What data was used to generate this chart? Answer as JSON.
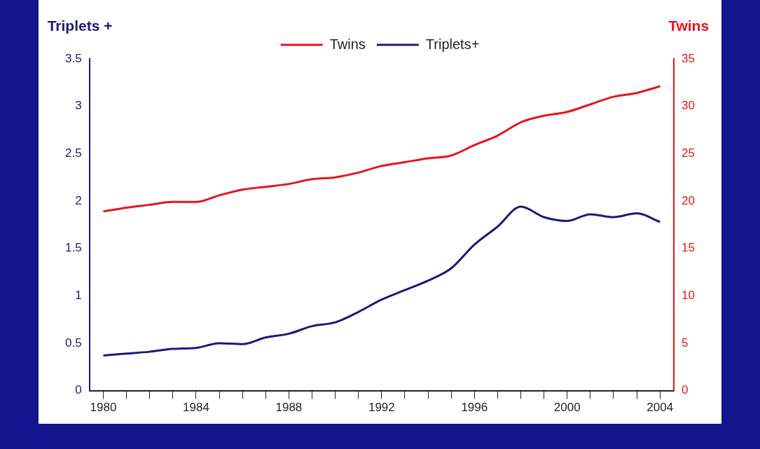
{
  "chart_data": {
    "type": "line",
    "ylabel": "Triplets +",
    "y2label": "Twins",
    "legend": "top",
    "marker": "none",
    "line_style": "solid",
    "grid": false,
    "xlim": [
      1979.4,
      2004.6
    ],
    "xticks": [
      1980,
      {
        "value": 1981,
        "label": null
      },
      {
        "value": 1982,
        "label": null
      },
      {
        "value": 1983,
        "label": null
      },
      1984,
      {
        "value": 1985,
        "label": null
      },
      {
        "value": 1986,
        "label": null
      },
      {
        "value": 1987,
        "label": null
      },
      1988,
      {
        "value": 1989,
        "label": null
      },
      {
        "value": 1990,
        "label": null
      },
      {
        "value": 1991,
        "label": null
      },
      1992,
      {
        "value": 1993,
        "label": null
      },
      {
        "value": 1994,
        "label": null
      },
      {
        "value": 1995,
        "label": null
      },
      1996,
      {
        "value": 1997,
        "label": null
      },
      {
        "value": 1998,
        "label": null
      },
      {
        "value": 1999,
        "label": null
      },
      2000,
      {
        "value": 2001,
        "label": null
      },
      {
        "value": 2002,
        "label": null
      },
      {
        "value": 2003,
        "label": null
      },
      2004
    ],
    "ylim": [
      0,
      3.5
    ],
    "yticks": [
      0,
      0.5,
      1,
      1.5,
      2,
      2.5,
      3,
      3.5
    ],
    "y2lim": [
      0,
      35
    ],
    "y2ticks": [
      0,
      5,
      10,
      15,
      20,
      25,
      30,
      35
    ],
    "x": [
      1980,
      1981,
      1982,
      1983,
      1984,
      1985,
      1986,
      1987,
      1988,
      1989,
      1990,
      1991,
      1992,
      1993,
      1994,
      1995,
      1996,
      1997,
      1998,
      1999,
      2000,
      2001,
      2002,
      2003,
      2004
    ],
    "series": [
      {
        "name": "Twins",
        "color": "#e8141c",
        "axis": "y2",
        "values": [
          18.9,
          19.3,
          19.6,
          19.9,
          19.9,
          20.6,
          21.2,
          21.5,
          21.8,
          22.3,
          22.5,
          23.0,
          23.7,
          24.1,
          24.5,
          24.8,
          25.9,
          26.9,
          28.3,
          29.0,
          29.4,
          30.2,
          31.0,
          31.4,
          32.1
        ]
      },
      {
        "name": "Triplets+",
        "color": "#1a1a7a",
        "axis": "y",
        "values": [
          0.37,
          0.39,
          0.41,
          0.44,
          0.45,
          0.5,
          0.49,
          0.56,
          0.6,
          0.68,
          0.72,
          0.83,
          0.96,
          1.06,
          1.16,
          1.29,
          1.54,
          1.73,
          1.94,
          1.83,
          1.79,
          1.86,
          1.83,
          1.87,
          1.78
        ]
      }
    ]
  }
}
